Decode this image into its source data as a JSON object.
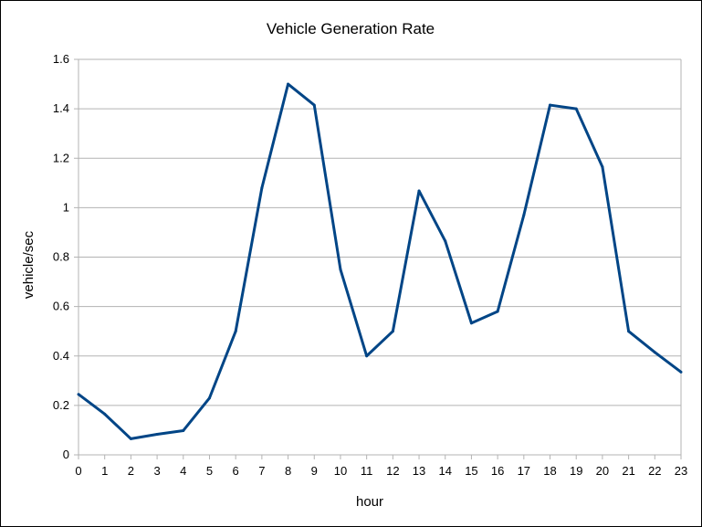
{
  "chart_data": {
    "type": "line",
    "title": "Vehicle Generation Rate",
    "xlabel": "hour",
    "ylabel": "vehicle/sec",
    "x": [
      0,
      1,
      2,
      3,
      4,
      5,
      6,
      7,
      8,
      9,
      10,
      11,
      12,
      13,
      14,
      15,
      16,
      17,
      18,
      19,
      20,
      21,
      22,
      23
    ],
    "series": [
      {
        "values": [
          0.245,
          0.165,
          0.065,
          0.083,
          0.098,
          0.23,
          0.5,
          1.08,
          1.5,
          1.415,
          0.75,
          0.4,
          0.5,
          1.068,
          0.865,
          0.533,
          0.58,
          0.97,
          1.415,
          1.4,
          1.165,
          0.5,
          0.415,
          0.335
        ],
        "color": "#004586"
      }
    ],
    "ylim": [
      0,
      1.6
    ],
    "yticks": [
      0,
      0.2,
      0.4,
      0.6,
      0.8,
      1,
      1.2,
      1.4,
      1.6
    ],
    "grid": true,
    "legend": "none",
    "colors": {
      "grid": "#b3b3b3",
      "axis": "#b3b3b3",
      "line": "#004586"
    }
  }
}
